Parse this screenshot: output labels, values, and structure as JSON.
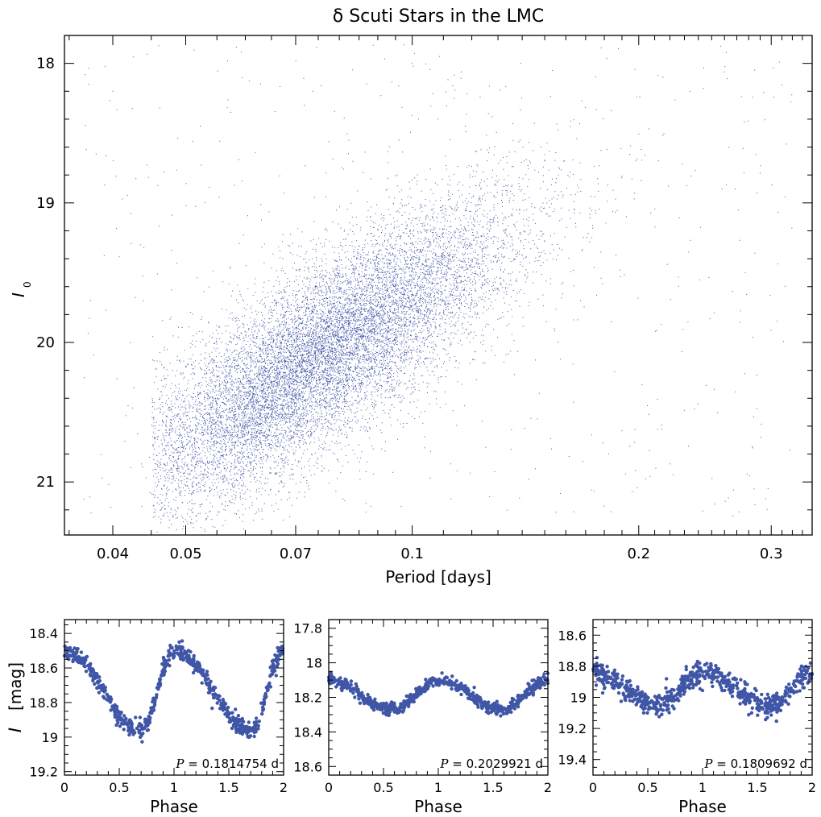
{
  "colors": {
    "point": "#3f55a6",
    "axis": "#000000",
    "background": "#ffffff"
  },
  "chart_data": [
    {
      "type": "scatter",
      "title": "δ Scuti Stars in the LMC",
      "xlabel": "Period [days]",
      "ylabel_main": "I",
      "ylabel_sub": "0",
      "x_scale": "log",
      "xlim": [
        0.0345,
        0.34
      ],
      "ylim": [
        21.38,
        17.8
      ],
      "y_inverted": true,
      "xticks": [
        0.04,
        0.05,
        0.07,
        0.1,
        0.2,
        0.3
      ],
      "xtick_labels": [
        "0.04",
        "0.05",
        "0.07",
        "0.1",
        "0.2",
        "0.3"
      ],
      "yticks": [
        18,
        19,
        20,
        21
      ],
      "ytick_labels": [
        "18",
        "19",
        "20",
        "21"
      ],
      "series": [
        {
          "n_points": 15000,
          "distribution": "dense period-luminosity band",
          "ridge": [
            [
              0.05,
              20.7
            ],
            [
              0.06,
              20.45
            ],
            [
              0.07,
              20.2
            ],
            [
              0.08,
              20.0
            ],
            [
              0.1,
              19.7
            ],
            [
              0.12,
              19.4
            ],
            [
              0.15,
              19.1
            ],
            [
              0.2,
              18.65
            ],
            [
              0.22,
              18.5
            ]
          ],
          "core": {
            "x": 0.075,
            "y": 20.2
          }
        }
      ],
      "grid": false
    },
    {
      "type": "scatter",
      "xlabel": "Phase",
      "ylabel_main": "I",
      "ylabel_unit": "[mag]",
      "xlim": [
        0,
        2
      ],
      "ylim": [
        19.22,
        18.32
      ],
      "y_inverted": true,
      "xticks": [
        0,
        0.5,
        1,
        1.5,
        2
      ],
      "xtick_labels": [
        "0",
        "0.5",
        "1",
        "1.5",
        "2"
      ],
      "yticks": [
        18.4,
        18.6,
        18.8,
        19,
        19.2
      ],
      "ytick_labels": [
        "18.4",
        "18.6",
        "18.8",
        "19",
        "19.2"
      ],
      "period_label": "P",
      "period_text": " = 0.1814754 d",
      "light_curve": {
        "max_phase": 0.0,
        "max_mag": 18.5,
        "min_phase": 0.7,
        "min_mag": 18.96,
        "scatter": 0.025
      }
    },
    {
      "type": "scatter",
      "xlabel": "Phase",
      "xlim": [
        0,
        2
      ],
      "ylim": [
        18.65,
        17.75
      ],
      "y_inverted": true,
      "xticks": [
        0,
        0.5,
        1,
        1.5,
        2
      ],
      "xtick_labels": [
        "0",
        "0.5",
        "1",
        "1.5",
        "2"
      ],
      "yticks": [
        17.8,
        18,
        18.2,
        18.4,
        18.6
      ],
      "ytick_labels": [
        "17.8",
        "18",
        "18.2",
        "18.4",
        "18.6"
      ],
      "period_label": "P",
      "period_text": " = 0.2029921 d",
      "light_curve": {
        "max_phase": 0.0,
        "max_mag": 18.1,
        "min_phase": 0.58,
        "min_mag": 18.27,
        "scatter": 0.018
      }
    },
    {
      "type": "scatter",
      "xlabel": "Phase",
      "xlim": [
        0,
        2
      ],
      "ylim": [
        19.5,
        18.5
      ],
      "y_inverted": true,
      "xticks": [
        0,
        0.5,
        1,
        1.5,
        2
      ],
      "xtick_labels": [
        "0",
        "0.5",
        "1",
        "1.5",
        "2"
      ],
      "yticks": [
        18.6,
        18.8,
        19,
        19.2,
        19.4
      ],
      "ytick_labels": [
        "18.6",
        "18.8",
        "19",
        "19.2",
        "19.4"
      ],
      "period_label": "P",
      "period_text": " = 0.1809692 d",
      "light_curve": {
        "max_phase": 0.0,
        "max_mag": 18.84,
        "min_phase": 0.6,
        "min_mag": 19.05,
        "scatter": 0.04
      }
    }
  ]
}
